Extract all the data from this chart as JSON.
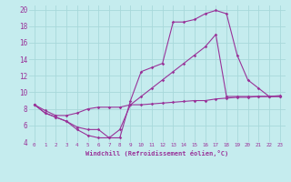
{
  "xlabel": "Windchill (Refroidissement éolien,°C)",
  "xlim": [
    -0.5,
    23.5
  ],
  "ylim": [
    4,
    20.5
  ],
  "xticks": [
    0,
    1,
    2,
    3,
    4,
    5,
    6,
    7,
    8,
    9,
    10,
    11,
    12,
    13,
    14,
    15,
    16,
    17,
    18,
    19,
    20,
    21,
    22,
    23
  ],
  "yticks": [
    4,
    6,
    8,
    10,
    12,
    14,
    16,
    18,
    20
  ],
  "bg_color": "#c5ecee",
  "line_color": "#993399",
  "grid_color": "#a8d8da",
  "lines": [
    {
      "x": [
        0,
        1,
        2,
        3,
        4,
        5,
        6,
        7,
        8,
        9,
        10,
        11,
        12,
        13,
        14,
        15,
        16,
        17,
        18,
        19,
        20,
        21,
        22,
        23
      ],
      "y": [
        8.5,
        7.5,
        7.0,
        6.5,
        5.8,
        5.5,
        5.5,
        4.5,
        4.5,
        9.0,
        12.5,
        13.0,
        13.5,
        18.5,
        18.5,
        18.8,
        19.5,
        19.9,
        19.5,
        14.5,
        11.5,
        10.5,
        9.5,
        9.5
      ]
    },
    {
      "x": [
        0,
        1,
        2,
        3,
        4,
        5,
        6,
        7,
        8,
        9,
        10,
        11,
        12,
        13,
        14,
        15,
        16,
        17,
        18,
        19,
        20,
        21,
        22,
        23
      ],
      "y": [
        8.5,
        7.5,
        7.0,
        6.5,
        5.5,
        4.8,
        4.5,
        4.5,
        5.5,
        8.5,
        9.5,
        10.5,
        11.5,
        12.5,
        13.5,
        14.5,
        15.5,
        17.0,
        9.5,
        9.5,
        9.5,
        9.5,
        9.5,
        9.5
      ]
    },
    {
      "x": [
        0,
        1,
        2,
        3,
        4,
        5,
        6,
        7,
        8,
        9,
        10,
        11,
        12,
        13,
        14,
        15,
        16,
        17,
        18,
        19,
        20,
        21,
        22,
        23
      ],
      "y": [
        8.5,
        7.8,
        7.2,
        7.2,
        7.5,
        8.0,
        8.2,
        8.2,
        8.2,
        8.5,
        8.5,
        8.6,
        8.7,
        8.8,
        8.9,
        9.0,
        9.0,
        9.2,
        9.3,
        9.4,
        9.4,
        9.5,
        9.5,
        9.6
      ]
    }
  ]
}
